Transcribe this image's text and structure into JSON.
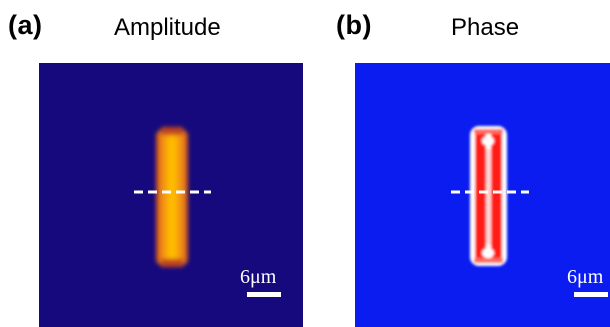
{
  "panels": [
    {
      "letter": "(a)",
      "title": "Amplitude",
      "scale_bar": "6μm",
      "colors": {
        "background": "#16097e",
        "bar_core": "#ffb000",
        "bar_edge": "#f07a1a",
        "marker": "#ffffff"
      }
    },
    {
      "letter": "(b)",
      "title": "Phase",
      "scale_bar": "6μm",
      "colors": {
        "background": "#0a1cf0",
        "bar_core": "#ff1010",
        "bar_edge": "#ffffff",
        "marker": "#ffffff"
      }
    }
  ]
}
